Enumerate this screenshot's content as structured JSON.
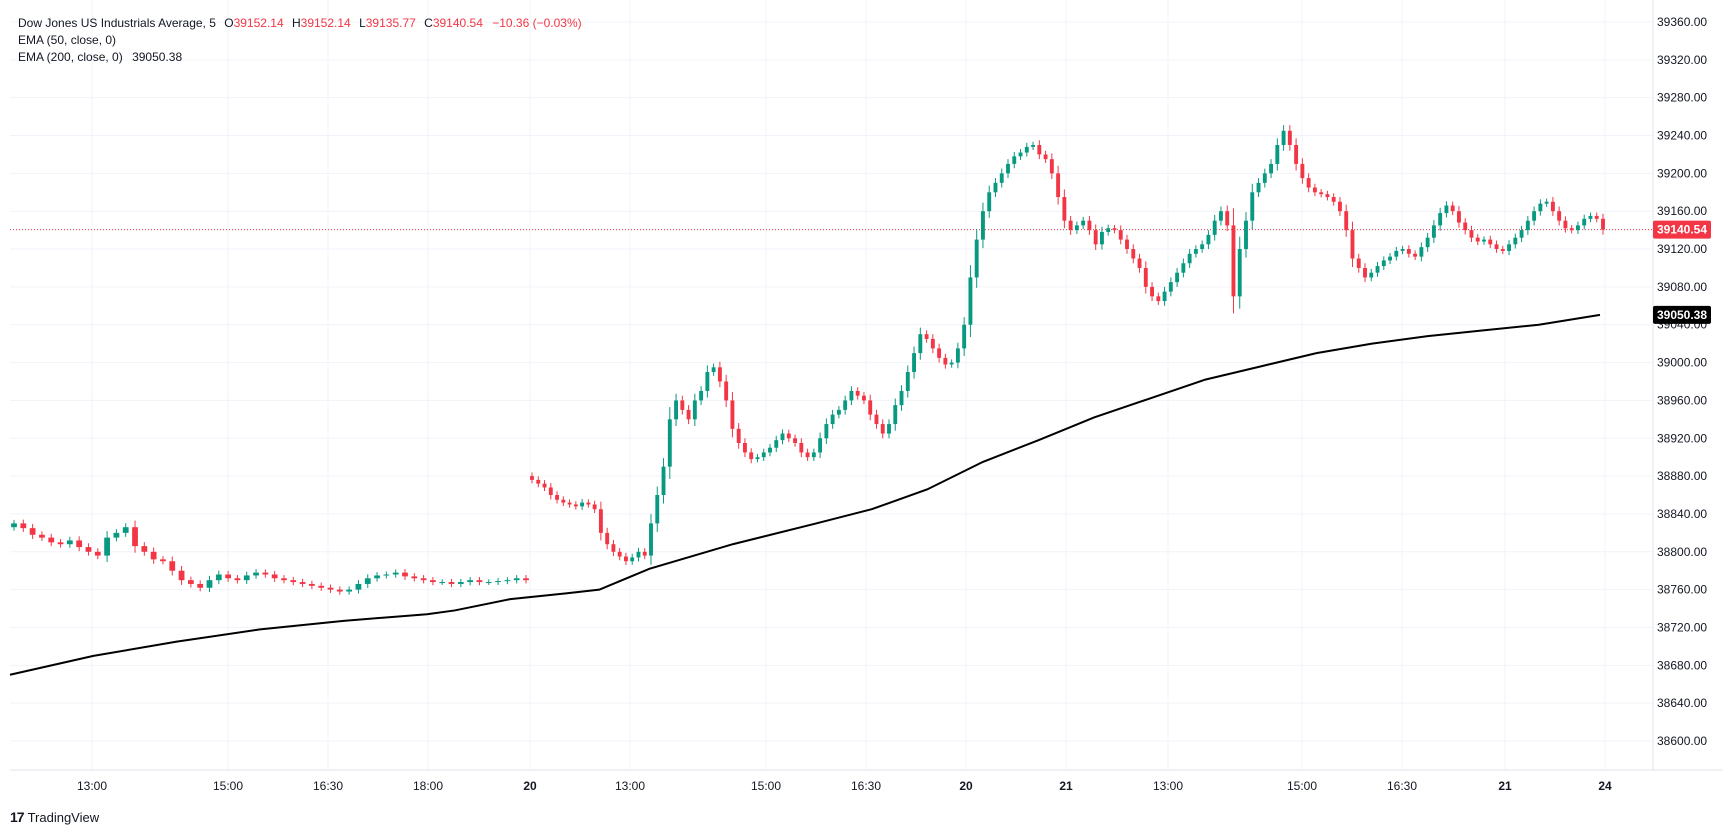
{
  "legend": {
    "instrument": "Dow Jones US Industrials Average, 5",
    "o_label": "O",
    "o": "39152.14",
    "h_label": "H",
    "h": "39152.14",
    "l_label": "L",
    "l": "39135.77",
    "c_label": "C",
    "c": "39140.54",
    "change": "−10.36 (−0.03%)",
    "ema50": "EMA (50, close, 0)",
    "ema200": "EMA (200, close, 0)",
    "ema200_value": "39050.38"
  },
  "brand": {
    "logo": "17",
    "name": "TradingView"
  },
  "colors": {
    "up": "#089981",
    "down": "#f23645",
    "ema": "#000000",
    "grid": "#f0f3fa",
    "last_price_line": "#f23645"
  },
  "chart_data": {
    "type": "candlestick",
    "title": "Dow Jones US Industrials Average, 5",
    "ylim": [
      38560,
      39380
    ],
    "y_ticks": [
      38600,
      38640,
      38680,
      38720,
      38760,
      38800,
      38840,
      38880,
      38920,
      38960,
      39000,
      39040,
      39080,
      39120,
      39160,
      39200,
      39240,
      39280,
      39320,
      39360
    ],
    "x_ticks": [
      "13:00",
      "15:00",
      "16:30",
      "18:00",
      "20",
      "13:00",
      "15:00",
      "16:30",
      "20",
      "21",
      "13:00",
      "15:00",
      "16:30",
      "21",
      "24"
    ],
    "price_labels": [
      {
        "value": 39140.54,
        "text": "39140.54",
        "kind": "last"
      },
      {
        "value": 39050.38,
        "text": "39050.38",
        "kind": "ema"
      }
    ],
    "segments": [
      {
        "name": "session-1",
        "closes": [
          38830,
          38825,
          38818,
          38815,
          38810,
          38808,
          38812,
          38805,
          38800,
          38796,
          38815,
          38820,
          38826,
          38806,
          38800,
          38792,
          38790,
          38780,
          38770,
          38766,
          38762,
          38770,
          38776,
          38772,
          38770,
          38775,
          38778,
          38776,
          38772,
          38770,
          38768,
          38766,
          38764,
          38762,
          38760,
          38758,
          38760,
          38766,
          38772,
          38775,
          38776,
          38778,
          38774,
          38772,
          38770,
          38768,
          38768,
          38766,
          38768,
          38770,
          38768,
          38768,
          38769,
          38770,
          38772,
          38770
        ]
      },
      {
        "name": "session-2",
        "closes": [
          38876,
          38872,
          38868,
          38860,
          38855,
          38852,
          38850,
          38848,
          38852,
          38850,
          38845,
          38820,
          38808,
          38800,
          38795,
          38790,
          38794,
          38800,
          38796,
          38830,
          38860,
          38890,
          38940,
          38960,
          38950,
          38940,
          38960,
          38970,
          38990,
          38995,
          38980,
          38960,
          38930,
          38915,
          38905,
          38898,
          38900,
          38905,
          38910,
          38918,
          38925,
          38920,
          38915,
          38905,
          38900,
          38905,
          38920,
          38935,
          38945,
          38950,
          38960,
          38970,
          38965,
          38960,
          38945,
          38935,
          38925,
          38935,
          38955,
          38970,
          38990,
          39010,
          39030,
          39025,
          39015,
          39005,
          38998,
          39000,
          39015,
          39040,
          39090,
          39130,
          39160,
          39180,
          39190,
          39200,
          39210,
          39218,
          39222,
          39228,
          39230,
          39220,
          39215,
          39200,
          39175,
          39150,
          39140,
          39145,
          39150,
          39140,
          39125,
          39138,
          39142,
          39140,
          39130,
          39120,
          39110,
          39100,
          39080,
          39070,
          39065,
          39075,
          39085,
          39095,
          39105,
          39115,
          39120,
          39125,
          39135,
          39150,
          39160,
          39145,
          39070,
          39120,
          39150,
          39180,
          39190,
          39200,
          39210,
          39230,
          39245,
          39230,
          39210,
          39195,
          39185,
          39180,
          39178,
          39175,
          39170,
          39160,
          39140,
          39110,
          39100,
          39090,
          39095,
          39102,
          39108,
          39112,
          39118,
          39120,
          39115,
          39112,
          39122,
          39132,
          39145,
          39158,
          39166,
          39160,
          39148,
          39140,
          39132,
          39128,
          39130,
          39125,
          39120,
          39118,
          39125,
          39132,
          39140,
          39150,
          39160,
          39168,
          39170,
          39160,
          39150,
          39142,
          39140,
          39145,
          39152,
          39155,
          39152,
          39140.54
        ]
      }
    ],
    "ema200": [
      [
        0,
        38670
      ],
      [
        30,
        38690
      ],
      [
        60,
        38705
      ],
      [
        90,
        38718
      ],
      [
        120,
        38727
      ],
      [
        150,
        38734
      ],
      [
        160,
        38738
      ],
      [
        180,
        38750
      ],
      [
        200,
        38756
      ],
      [
        212,
        38760
      ],
      [
        230,
        38782
      ],
      [
        260,
        38808
      ],
      [
        290,
        38830
      ],
      [
        310,
        38845
      ],
      [
        330,
        38866
      ],
      [
        350,
        38895
      ],
      [
        370,
        38918
      ],
      [
        390,
        38942
      ],
      [
        410,
        38962
      ],
      [
        430,
        38982
      ],
      [
        450,
        38996
      ],
      [
        470,
        39010
      ],
      [
        490,
        39020
      ],
      [
        510,
        39028
      ],
      [
        530,
        39034
      ],
      [
        550,
        39040
      ],
      [
        572,
        39050.38
      ]
    ]
  }
}
